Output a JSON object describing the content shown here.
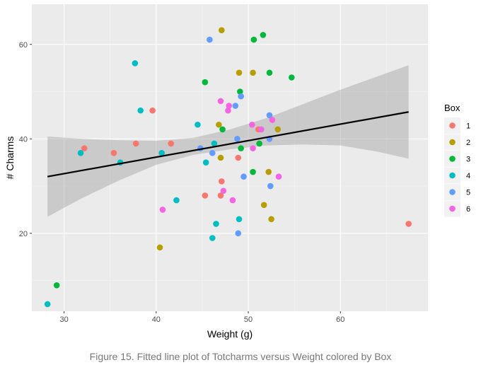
{
  "chart_data": {
    "type": "scatter",
    "xlabel": "Weight (g)",
    "ylabel": "# Charms",
    "xlim": [
      26.5,
      69.5
    ],
    "ylim": [
      3.5,
      68.5
    ],
    "x_ticks": [
      30,
      40,
      50,
      60
    ],
    "y_ticks": [
      20,
      40,
      60
    ],
    "grid": true,
    "legend_title": "Box",
    "legend_position": "right",
    "series": [
      {
        "name": "1",
        "color": "#F8766D",
        "points": [
          [
            32.2,
            38
          ],
          [
            35.4,
            37
          ],
          [
            37.8,
            39
          ],
          [
            39.6,
            46
          ],
          [
            41.6,
            39
          ],
          [
            45.3,
            28
          ],
          [
            47.1,
            31
          ],
          [
            47.0,
            28
          ],
          [
            48.9,
            36
          ],
          [
            51.1,
            42
          ],
          [
            67.4,
            22
          ]
        ]
      },
      {
        "name": "2",
        "color": "#B79F00",
        "points": [
          [
            40.4,
            17
          ],
          [
            46.8,
            43
          ],
          [
            47.0,
            36
          ],
          [
            47.1,
            63
          ],
          [
            49.0,
            54
          ],
          [
            50.5,
            54
          ],
          [
            51.7,
            26
          ],
          [
            52.2,
            33
          ],
          [
            52.5,
            23
          ],
          [
            53.2,
            42
          ]
        ]
      },
      {
        "name": "3",
        "color": "#00BA38",
        "points": [
          [
            29.2,
            9
          ],
          [
            45.3,
            52
          ],
          [
            47.2,
            42
          ],
          [
            49.1,
            50
          ],
          [
            49.2,
            38
          ],
          [
            50.5,
            33
          ],
          [
            51.2,
            39
          ],
          [
            50.6,
            61
          ],
          [
            51.6,
            62
          ],
          [
            52.3,
            54
          ],
          [
            54.7,
            53
          ]
        ]
      },
      {
        "name": "4",
        "color": "#00BFC4",
        "points": [
          [
            28.2,
            5
          ],
          [
            31.8,
            37
          ],
          [
            36.1,
            35
          ],
          [
            37.7,
            56
          ],
          [
            38.3,
            46
          ],
          [
            40.6,
            37
          ],
          [
            42.2,
            27
          ],
          [
            44.5,
            43
          ],
          [
            45.4,
            35
          ],
          [
            46.1,
            19
          ],
          [
            46.3,
            39
          ],
          [
            46.5,
            22
          ],
          [
            49.0,
            23
          ]
        ]
      },
      {
        "name": "5",
        "color": "#619CFF",
        "points": [
          [
            44.8,
            38
          ],
          [
            45.8,
            61
          ],
          [
            46.1,
            37
          ],
          [
            48.6,
            47
          ],
          [
            48.8,
            40
          ],
          [
            48.9,
            20
          ],
          [
            49.2,
            49
          ],
          [
            49.5,
            32
          ],
          [
            52.3,
            45
          ],
          [
            52.3,
            40
          ],
          [
            52.4,
            30
          ]
        ]
      },
      {
        "name": "6",
        "color": "#F564E3",
        "points": [
          [
            40.7,
            25
          ],
          [
            47.0,
            48
          ],
          [
            47.3,
            29
          ],
          [
            47.8,
            46
          ],
          [
            47.9,
            47
          ],
          [
            48.3,
            27
          ],
          [
            50.4,
            43
          ],
          [
            50.5,
            38
          ],
          [
            51.4,
            42
          ],
          [
            52.6,
            44
          ],
          [
            53.3,
            32
          ]
        ]
      }
    ],
    "fit_line": {
      "x": [
        28.2,
        67.4
      ],
      "y": [
        32.0,
        45.7
      ]
    },
    "confidence_band": {
      "x": [
        28.2,
        32,
        36,
        40,
        44,
        48,
        52,
        56,
        60,
        64,
        67.4
      ],
      "lower": [
        23.5,
        27.5,
        31.2,
        34.5,
        36.6,
        37.8,
        38.6,
        38.8,
        38.6,
        37.3,
        35.8
      ],
      "upper": [
        40.5,
        40.0,
        39.7,
        39.6,
        40.2,
        42.0,
        44.4,
        47.4,
        50.4,
        53.2,
        55.6
      ]
    }
  },
  "caption": "Figure 15. Fitted line plot of Totcharms versus Weight colored by Box"
}
